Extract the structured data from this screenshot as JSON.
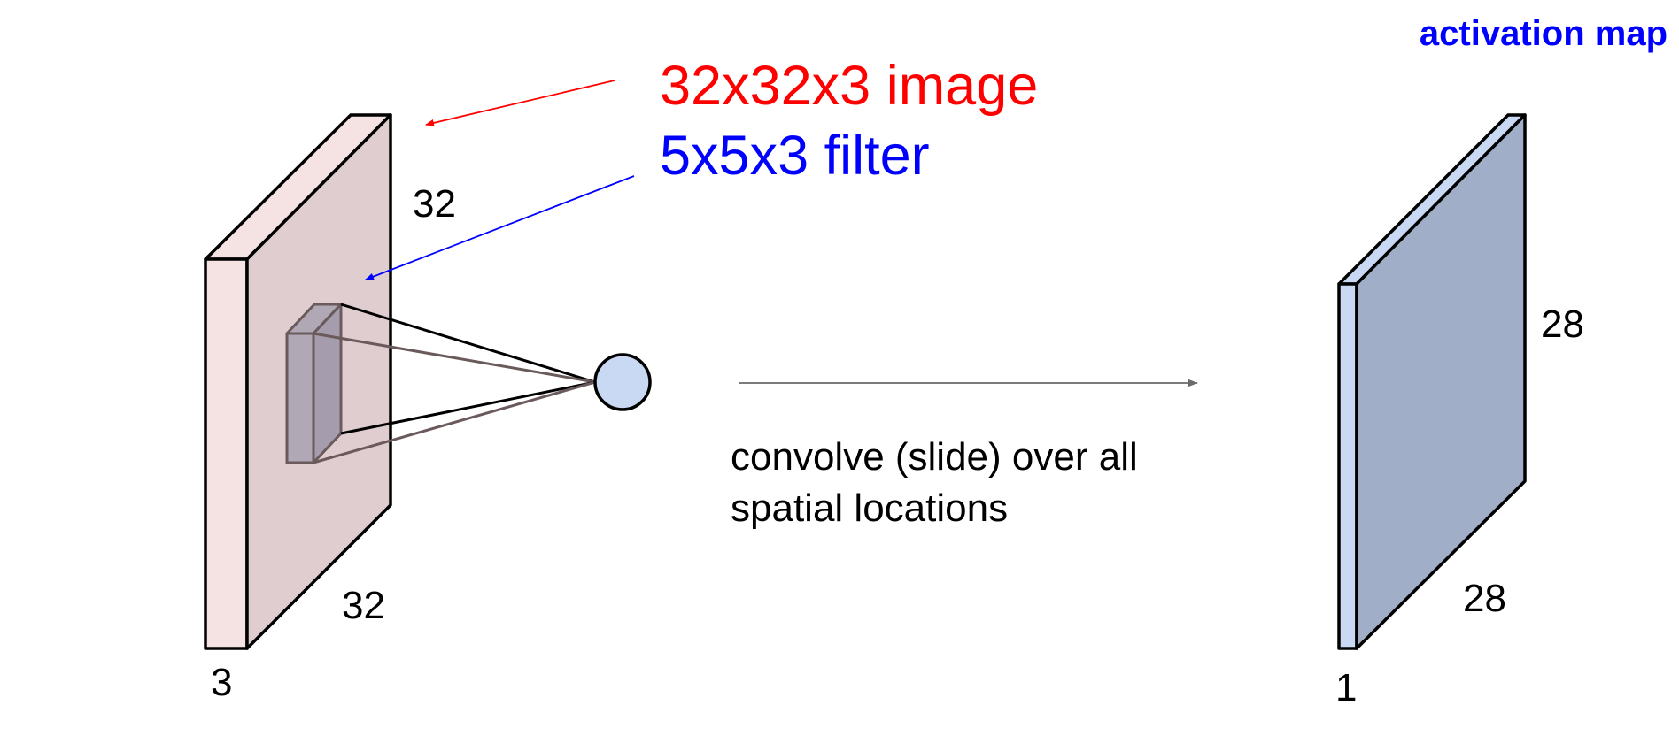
{
  "labels": {
    "top_right": "activation map",
    "image_caption": "32x32x3 image",
    "filter_caption": "5x5x3 filter",
    "input_height": "32",
    "input_width": "32",
    "input_depth": "3",
    "output_height": "28",
    "output_width": "28",
    "output_depth": "1",
    "convolve_line1": "convolve (slide) over all",
    "convolve_line2": "spatial locations"
  },
  "colors": {
    "image_caption": "#ff0000",
    "filter_caption": "#0000ff",
    "top_right": "#0000ff",
    "input_front": "#dfcdcf",
    "input_side": "#f5e2e2",
    "filter_front": "#b1a8b6",
    "filter_side": "#a59dae",
    "neuron": "#c9d9f3",
    "output_front": "#a0afc7",
    "output_side": "#c9d9f3",
    "arrow": "#6a6a6a"
  }
}
